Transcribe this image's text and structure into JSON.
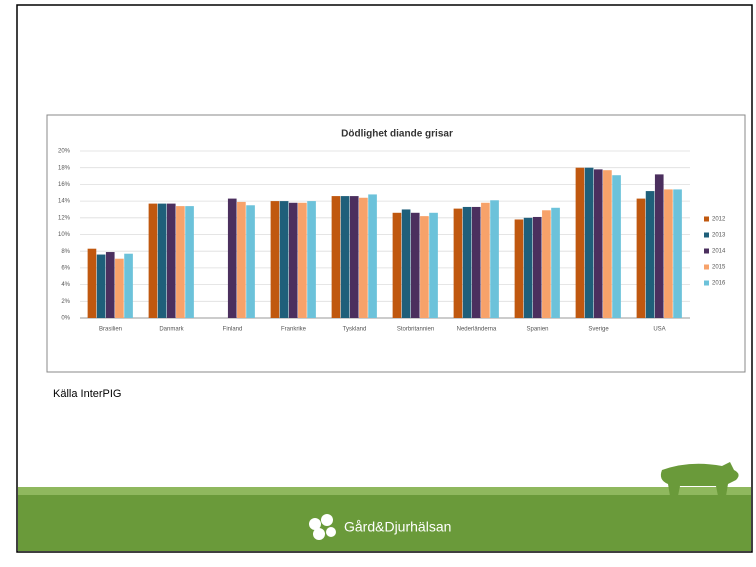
{
  "chart_data": {
    "type": "bar",
    "title": "Dödlighet diande grisar",
    "categories": [
      "Brasilien",
      "Danmark",
      "Finland",
      "Frankrike",
      "Tyskland",
      "Storbritannien",
      "Nederländerna",
      "Spanien",
      "Sverige",
      "USA"
    ],
    "series": [
      {
        "name": "2012",
        "color": "#c0580f",
        "values": [
          8.3,
          13.7,
          null,
          14.0,
          14.6,
          12.6,
          13.1,
          11.8,
          18.0,
          14.3
        ]
      },
      {
        "name": "2013",
        "color": "#1f5f7a",
        "values": [
          7.6,
          13.7,
          null,
          14.0,
          14.6,
          13.0,
          13.3,
          12.0,
          18.0,
          15.2
        ]
      },
      {
        "name": "2014",
        "color": "#4b2f5e",
        "values": [
          7.9,
          13.7,
          14.3,
          13.8,
          14.6,
          12.6,
          13.3,
          12.1,
          17.8,
          17.2
        ]
      },
      {
        "name": "2015",
        "color": "#f7a26a",
        "values": [
          7.1,
          13.4,
          13.9,
          13.8,
          14.4,
          12.2,
          13.8,
          12.9,
          17.7,
          15.4
        ]
      },
      {
        "name": "2016",
        "color": "#6cc2da",
        "values": [
          7.7,
          13.4,
          13.5,
          14.0,
          14.8,
          12.6,
          14.1,
          13.2,
          17.1,
          15.4
        ]
      }
    ],
    "ylim": [
      0,
      20
    ],
    "yticks": [
      {
        "value": 0,
        "label": "0%"
      },
      {
        "value": 2,
        "label": "2%"
      },
      {
        "value": 4,
        "label": "4%"
      },
      {
        "value": 6,
        "label": "6%"
      },
      {
        "value": 8,
        "label": "8%"
      },
      {
        "value": 10,
        "label": "10%"
      },
      {
        "value": 12,
        "label": "12%"
      },
      {
        "value": 14,
        "label": "14%"
      },
      {
        "value": 16,
        "label": "16%"
      },
      {
        "value": 18,
        "label": "18%"
      },
      {
        "value": 20,
        "label": "20%"
      }
    ],
    "grid": true,
    "legend": "right"
  },
  "source": "Källa InterPIG",
  "footer": {
    "logo": "Gård&Djurhälsan"
  }
}
